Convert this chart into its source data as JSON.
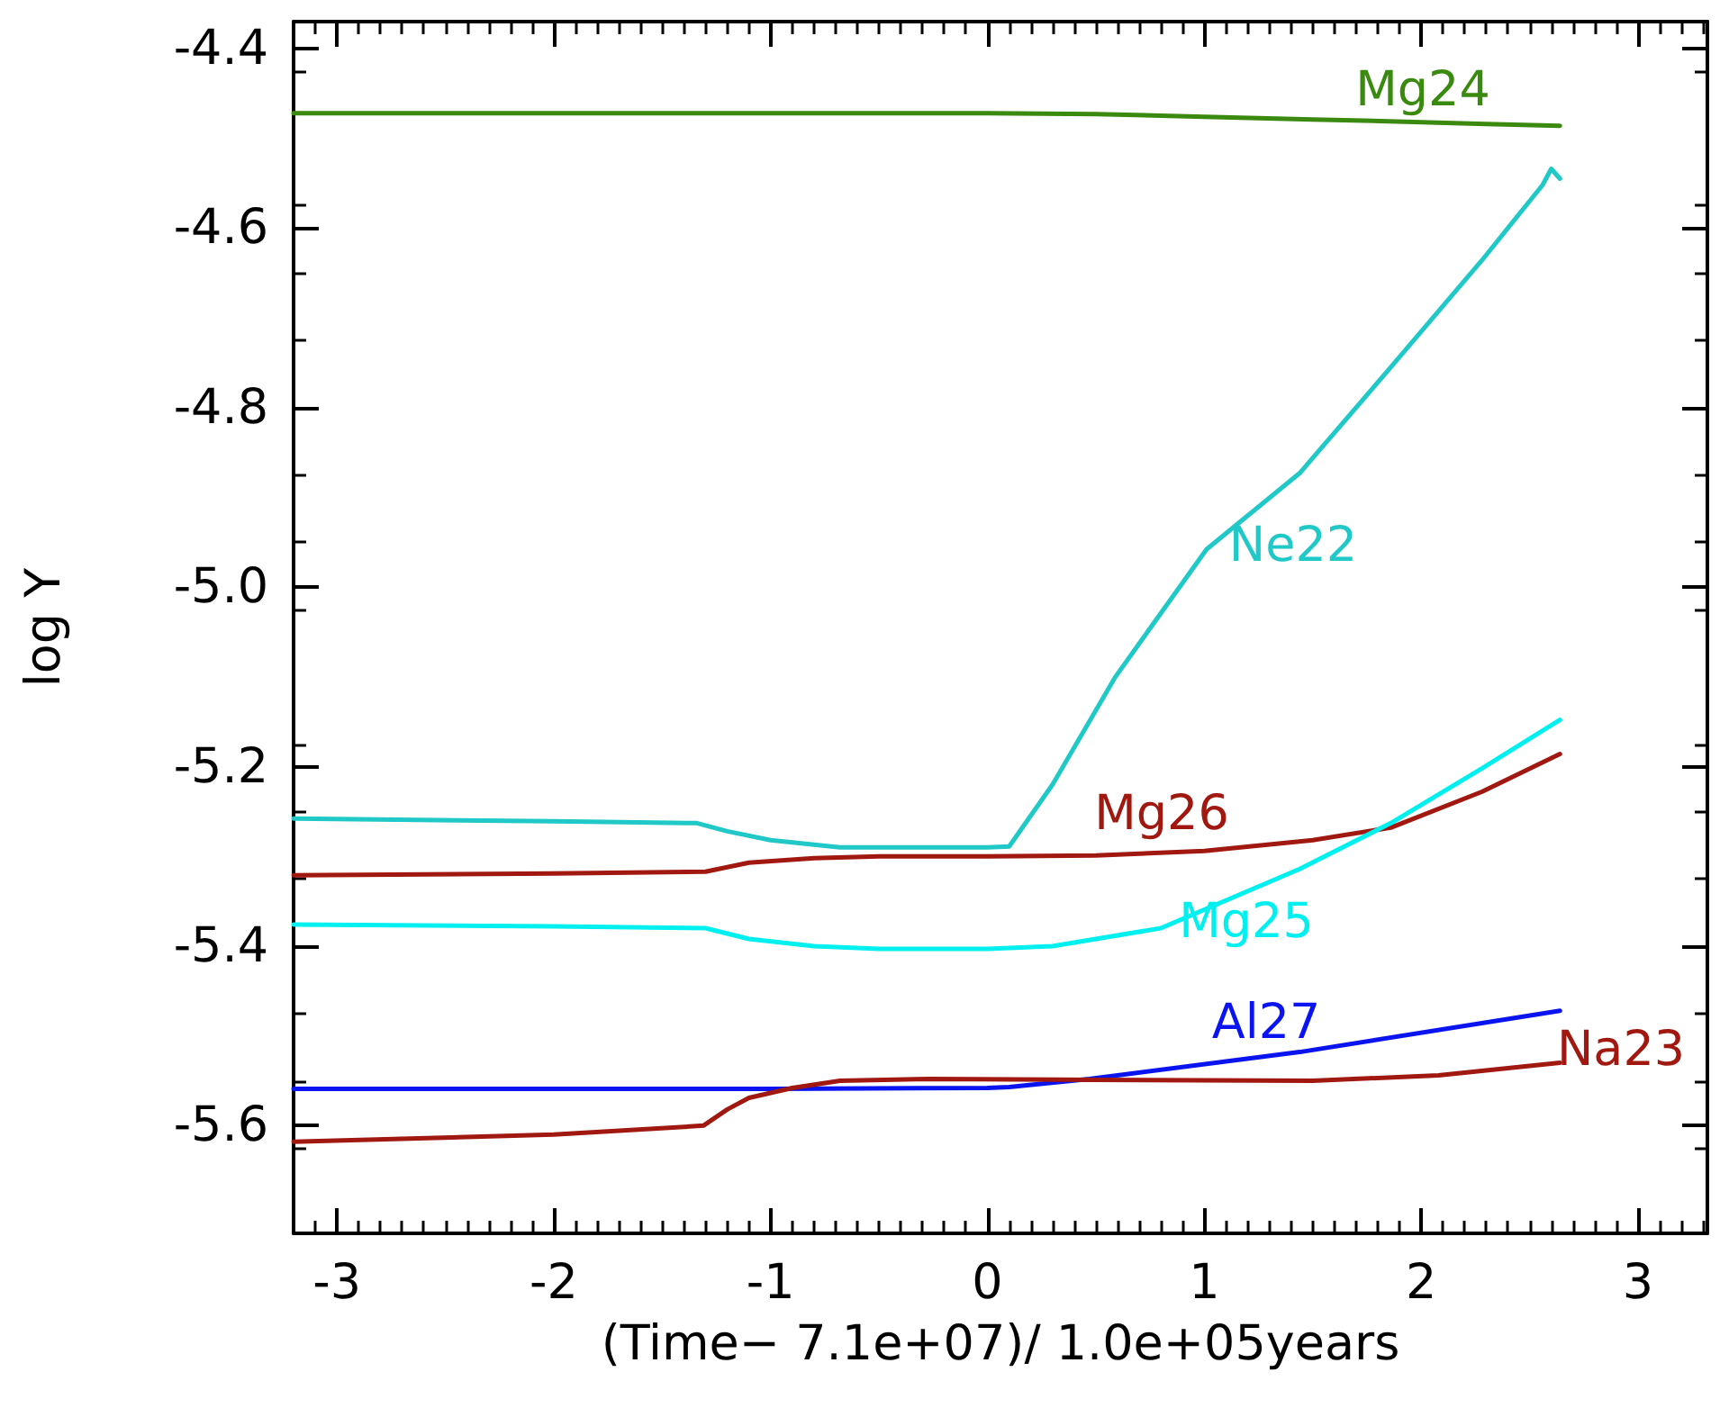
{
  "chart_data": {
    "type": "line",
    "xlabel": "(Time− 7.1e+07)/ 1.0e+05years",
    "ylabel": "log Y",
    "xlim": [
      -3.2,
      3.32
    ],
    "xticks": [
      -3,
      -2,
      -1,
      0,
      1,
      2,
      3
    ],
    "ylim": [
      -5.72,
      -4.37
    ],
    "yticks": [
      -4.4,
      -4.6,
      -4.8,
      {
        "value": -5,
        "label": "-5.0"
      },
      -5.2,
      -5.4,
      -5.6
    ],
    "grid": false,
    "legend": false,
    "marker": "none",
    "line_style": "solid",
    "series": [
      {
        "name": "Mg24",
        "color": "#3a8a10",
        "x": [
          -3.2,
          -2,
          -1,
          0,
          0.5,
          1,
          1.5,
          2,
          2.3,
          2.64
        ],
        "values": [
          -4.472,
          -4.472,
          -4.472,
          -4.472,
          -4.473,
          -4.476,
          -4.479,
          -4.482,
          -4.484,
          -4.486
        ]
      },
      {
        "name": "Ne22",
        "color": "#20c8c8",
        "x": [
          -3.2,
          -2,
          -1.34,
          -1.2,
          -1.0,
          -0.68,
          0,
          0.1,
          0.3,
          0.59,
          1.01,
          1.44,
          1.86,
          2.28,
          2.56,
          2.6,
          2.64
        ],
        "values": [
          -5.258,
          -5.261,
          -5.263,
          -5.272,
          -5.282,
          -5.29,
          -5.29,
          -5.289,
          -5.22,
          -5.1,
          -4.958,
          -4.873,
          -4.755,
          -4.636,
          -4.552,
          -4.534,
          -4.545
        ]
      },
      {
        "name": "Mg26",
        "color": "#a01810",
        "x": [
          -3.2,
          -2,
          -1.3,
          -1.1,
          -0.8,
          -0.5,
          0,
          0.5,
          1,
          1.5,
          1.86,
          2.28,
          2.64
        ],
        "values": [
          -5.321,
          -5.319,
          -5.317,
          -5.307,
          -5.302,
          -5.3,
          -5.3,
          -5.299,
          -5.294,
          -5.282,
          -5.268,
          -5.228,
          -5.186
        ]
      },
      {
        "name": "Mg25",
        "color": "#00f0f0",
        "x": [
          -3.2,
          -2,
          -1.3,
          -1.1,
          -0.8,
          -0.5,
          0,
          0.3,
          0.8,
          1.44,
          1.86,
          2.28,
          2.64
        ],
        "values": [
          -5.376,
          -5.378,
          -5.38,
          -5.392,
          -5.4,
          -5.403,
          -5.403,
          -5.4,
          -5.38,
          -5.314,
          -5.263,
          -5.202,
          -5.148
        ]
      },
      {
        "name": "Al27",
        "color": "#0a14f0",
        "x": [
          -3.2,
          -1,
          0,
          0.1,
          0.47,
          1.44,
          2.64
        ],
        "values": [
          -5.559,
          -5.559,
          -5.558,
          -5.557,
          -5.548,
          -5.518,
          -5.472
        ]
      },
      {
        "name": "Na23",
        "color": "#a01810",
        "x": [
          -3.2,
          -2,
          -1.31,
          -1.2,
          -1.1,
          -0.9,
          -0.68,
          -0.26,
          0.5,
          1.5,
          2.08,
          2.64
        ],
        "values": [
          -5.618,
          -5.61,
          -5.6,
          -5.582,
          -5.569,
          -5.558,
          -5.55,
          -5.548,
          -5.549,
          -5.55,
          -5.544,
          -5.53
        ]
      }
    ]
  }
}
